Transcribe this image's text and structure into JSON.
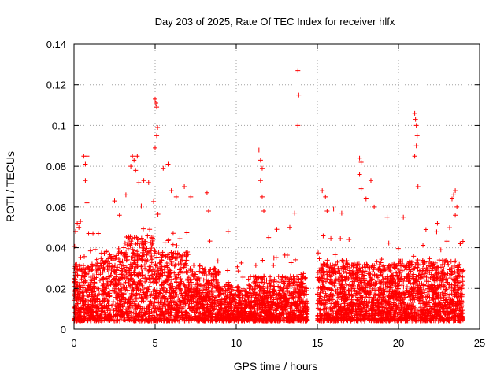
{
  "chart_data": {
    "type": "scatter",
    "title": "Day 203 of 2025, Rate Of TEC Index for receiver hlfx",
    "xlabel": "GPS time / hours",
    "ylabel": "ROTI / TECUs",
    "xlim": [
      0,
      25
    ],
    "ylim": [
      0,
      0.14
    ],
    "xticks": [
      0,
      5,
      10,
      15,
      20,
      25
    ],
    "xtick_labels": [
      "0",
      "5",
      "10",
      "15",
      "20",
      "25"
    ],
    "yticks": [
      0,
      0.02,
      0.04,
      0.06,
      0.08,
      0.1,
      0.12,
      0.14
    ],
    "ytick_labels": [
      "0",
      "0.02",
      "0.04",
      "0.06",
      "0.08",
      "0.1",
      "0.12",
      "0.14"
    ],
    "grid": true,
    "marker": "+",
    "color": "#ff0000",
    "data_gap_hours": [
      14.4,
      15.0
    ],
    "series": [
      {
        "name": "ROTI",
        "points": [
          [
            0.1,
            0.048
          ],
          [
            0.2,
            0.052
          ],
          [
            0.3,
            0.05
          ],
          [
            0.4,
            0.053
          ],
          [
            0.6,
            0.085
          ],
          [
            0.7,
            0.081
          ],
          [
            0.8,
            0.085
          ],
          [
            0.7,
            0.073
          ],
          [
            0.8,
            0.062
          ],
          [
            0.9,
            0.047
          ],
          [
            1.5,
            0.047
          ],
          [
            2.5,
            0.063
          ],
          [
            2.8,
            0.056
          ],
          [
            3.2,
            0.066
          ],
          [
            3.5,
            0.08
          ],
          [
            3.6,
            0.085
          ],
          [
            3.7,
            0.083
          ],
          [
            3.8,
            0.078
          ],
          [
            3.9,
            0.085
          ],
          [
            4.0,
            0.072
          ],
          [
            4.3,
            0.073
          ],
          [
            4.6,
            0.072
          ],
          [
            5.0,
            0.113
          ],
          [
            5.05,
            0.111
          ],
          [
            5.1,
            0.109
          ],
          [
            5.15,
            0.099
          ],
          [
            5.0,
            0.089
          ],
          [
            5.1,
            0.095
          ],
          [
            5.5,
            0.079
          ],
          [
            5.8,
            0.081
          ],
          [
            6.0,
            0.068
          ],
          [
            6.3,
            0.065
          ],
          [
            6.8,
            0.07
          ],
          [
            7.2,
            0.065
          ],
          [
            8.2,
            0.067
          ],
          [
            8.3,
            0.058
          ],
          [
            9.5,
            0.048
          ],
          [
            11.4,
            0.088
          ],
          [
            11.5,
            0.083
          ],
          [
            11.6,
            0.079
          ],
          [
            11.5,
            0.073
          ],
          [
            11.6,
            0.065
          ],
          [
            11.7,
            0.058
          ],
          [
            12.0,
            0.045
          ],
          [
            12.5,
            0.049
          ],
          [
            13.3,
            0.05
          ],
          [
            13.6,
            0.057
          ],
          [
            13.8,
            0.127
          ],
          [
            13.85,
            0.115
          ],
          [
            13.8,
            0.1
          ],
          [
            15.3,
            0.068
          ],
          [
            15.5,
            0.065
          ],
          [
            15.6,
            0.058
          ],
          [
            16.0,
            0.059
          ],
          [
            16.5,
            0.057
          ],
          [
            17.6,
            0.084
          ],
          [
            17.7,
            0.082
          ],
          [
            17.6,
            0.076
          ],
          [
            17.7,
            0.069
          ],
          [
            18.0,
            0.064
          ],
          [
            18.3,
            0.073
          ],
          [
            18.5,
            0.06
          ],
          [
            19.3,
            0.055
          ],
          [
            20.3,
            0.055
          ],
          [
            21.0,
            0.106
          ],
          [
            21.05,
            0.103
          ],
          [
            21.1,
            0.1
          ],
          [
            21.15,
            0.095
          ],
          [
            21.1,
            0.09
          ],
          [
            21.0,
            0.085
          ],
          [
            21.2,
            0.07
          ],
          [
            22.4,
            0.052
          ],
          [
            23.3,
            0.064
          ],
          [
            23.4,
            0.066
          ],
          [
            23.5,
            0.068
          ],
          [
            23.6,
            0.06
          ],
          [
            23.5,
            0.056
          ],
          [
            23.8,
            0.042
          ],
          [
            0.5,
            0.018
          ],
          [
            1.0,
            0.021
          ],
          [
            1.6,
            0.024
          ],
          [
            2.0,
            0.02
          ],
          [
            2.6,
            0.022
          ],
          [
            3.0,
            0.025
          ],
          [
            3.5,
            0.03
          ],
          [
            4.2,
            0.028
          ],
          [
            4.8,
            0.026
          ],
          [
            5.4,
            0.022
          ],
          [
            6.0,
            0.02
          ],
          [
            6.6,
            0.019
          ],
          [
            7.2,
            0.017
          ],
          [
            7.8,
            0.016
          ],
          [
            8.4,
            0.015
          ],
          [
            9.0,
            0.014
          ],
          [
            9.6,
            0.013
          ],
          [
            10.2,
            0.012
          ],
          [
            10.8,
            0.013
          ],
          [
            11.4,
            0.014
          ],
          [
            12.0,
            0.013
          ],
          [
            12.6,
            0.012
          ],
          [
            13.2,
            0.013
          ],
          [
            13.8,
            0.012
          ],
          [
            14.2,
            0.011
          ],
          [
            15.2,
            0.016
          ],
          [
            15.8,
            0.017
          ],
          [
            16.4,
            0.018
          ],
          [
            17.0,
            0.017
          ],
          [
            17.6,
            0.02
          ],
          [
            18.2,
            0.019
          ],
          [
            18.8,
            0.017
          ],
          [
            19.4,
            0.016
          ],
          [
            20.0,
            0.017
          ],
          [
            20.6,
            0.018
          ],
          [
            21.2,
            0.019
          ],
          [
            21.8,
            0.017
          ],
          [
            22.4,
            0.016
          ],
          [
            23.0,
            0.017
          ],
          [
            23.6,
            0.018
          ]
        ]
      }
    ]
  }
}
